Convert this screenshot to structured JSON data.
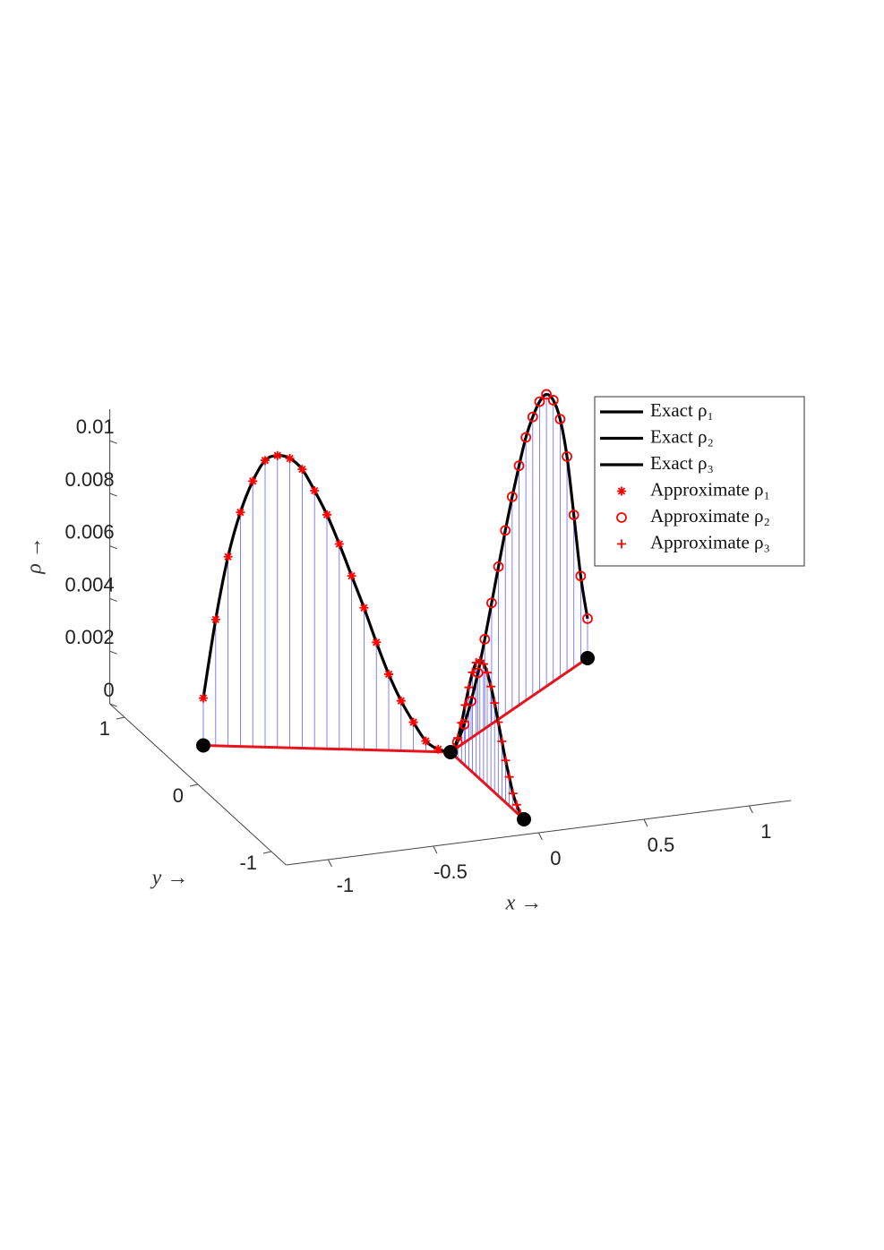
{
  "chart_data": {
    "type": "line3d",
    "xlabel": "x →",
    "ylabel": "y →",
    "zlabel": "ρ →",
    "xlim": [
      -1.2,
      1.2
    ],
    "ylim": [
      -1.2,
      1.2
    ],
    "zlim": [
      0,
      0.0112
    ],
    "xticks": [
      -1,
      -0.5,
      0,
      0.5,
      1
    ],
    "yticks": [
      -1,
      0,
      1
    ],
    "zticks": [
      0,
      0.002,
      0.004,
      0.006,
      0.008,
      0.01
    ],
    "vertex_x": [
      0,
      -1,
      1,
      0
    ],
    "vertex_y": [
      0,
      0.5,
      1,
      -1
    ],
    "vertex_color": "#000000",
    "edge_color": "#e8141c",
    "stem_color": "#3d3dff",
    "legend": "upper right",
    "s": [
      0,
      0.05,
      0.1,
      0.15,
      0.2,
      0.25,
      0.3,
      0.35,
      0.4,
      0.45,
      0.5,
      0.55,
      0.6,
      0.65,
      0.7,
      0.75,
      0.8,
      0.85,
      0.9,
      0.95,
      1
    ],
    "series": [
      {
        "name": "Exact ρ₁",
        "color": "#000000",
        "style": "line",
        "edge": [
          0,
          1
        ],
        "values": [
          0,
          0.0001,
          0.0004,
          0.0011,
          0.0019,
          0.0029,
          0.0041,
          0.0054,
          0.0066,
          0.0078,
          0.0089,
          0.0098,
          0.0106,
          0.011,
          0.0111,
          0.0109,
          0.0101,
          0.0089,
          0.0072,
          0.0048,
          0.0018
        ]
      },
      {
        "name": "Exact ρ₂",
        "color": "#000000",
        "style": "line",
        "edge": [
          0,
          2
        ],
        "values": [
          0,
          0.0002,
          0.0007,
          0.0014,
          0.0023,
          0.0034,
          0.0046,
          0.0058,
          0.007,
          0.0081,
          0.0091,
          0.01,
          0.0106,
          0.011,
          0.0111,
          0.0107,
          0.0098,
          0.0082,
          0.0058,
          0.0033,
          0.0015
        ]
      },
      {
        "name": "Exact ρ₃",
        "color": "#000000",
        "style": "line",
        "edge": [
          0,
          3
        ],
        "values": [
          0,
          0.0003,
          0.0008,
          0.0015,
          0.0023,
          0.0031,
          0.0038,
          0.0043,
          0.0045,
          0.0045,
          0.0043,
          0.0039,
          0.0034,
          0.0028,
          0.0022,
          0.0016,
          0.0011,
          0.0006,
          0.0003,
          0.0001,
          0
        ]
      },
      {
        "name": "Approximate ρ₁",
        "color": "#ff0000",
        "style": "star",
        "edge": [
          0,
          1
        ],
        "values": [
          0,
          0.0001,
          0.0004,
          0.0011,
          0.0019,
          0.0029,
          0.0041,
          0.0054,
          0.0066,
          0.0078,
          0.0089,
          0.0098,
          0.0106,
          0.011,
          0.0111,
          0.0109,
          0.0101,
          0.0089,
          0.0072,
          0.0048,
          0.0018
        ]
      },
      {
        "name": "Approximate ρ₂",
        "color": "#ff0000",
        "style": "circle",
        "edge": [
          0,
          2
        ],
        "values": [
          0,
          0.0002,
          0.0007,
          0.0014,
          0.0023,
          0.0034,
          0.0046,
          0.0058,
          0.007,
          0.0081,
          0.0091,
          0.01,
          0.0106,
          0.011,
          0.0111,
          0.0107,
          0.0098,
          0.0082,
          0.0058,
          0.0033,
          0.0015
        ]
      },
      {
        "name": "Approximate ρ₃",
        "color": "#ff0000",
        "style": "plus",
        "edge": [
          0,
          3
        ],
        "values": [
          0,
          0.0003,
          0.0008,
          0.0015,
          0.0023,
          0.0031,
          0.0038,
          0.0043,
          0.0045,
          0.0045,
          0.0043,
          0.0039,
          0.0034,
          0.0028,
          0.0022,
          0.0016,
          0.0011,
          0.0006,
          0.0003,
          0.0001,
          0
        ]
      }
    ]
  }
}
